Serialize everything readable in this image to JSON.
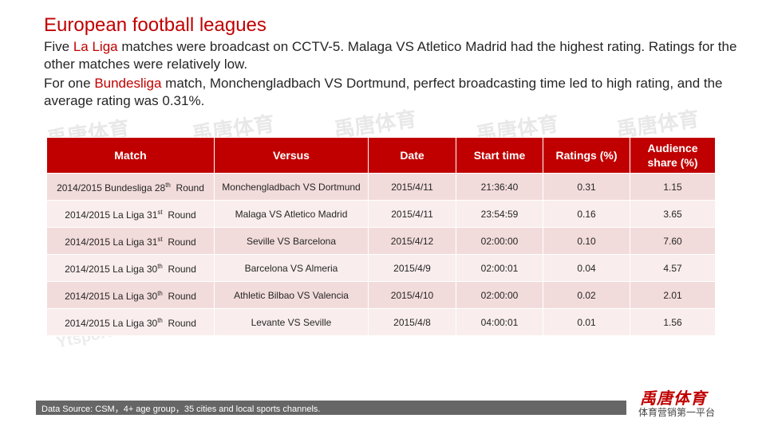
{
  "title": "European football leagues",
  "paragraph1": {
    "before": "Five ",
    "highlight": "La Liga",
    "after": " matches were broadcast on CCTV-5. Malaga VS Atletico Madrid had the highest rating. Ratings for the other matches were relatively low."
  },
  "paragraph2": {
    "before": "For one ",
    "highlight": "Bundesliga",
    "after": " match, Monchengladbach VS Dortmund, perfect broadcasting time led to high rating, and the average rating was 0.31%."
  },
  "watermark_cn": "禹唐体育",
  "watermark_en": "Ytsports.c...",
  "table": {
    "headers": [
      "Match",
      "Versus",
      "Date",
      "Start time",
      "Ratings (%)",
      "Audience share (%)"
    ],
    "rows": [
      {
        "match_prefix": "2014/2015 Bundesliga 28",
        "sup": "th",
        "match_suffix": "Round",
        "versus": "Monchengladbach VS Dortmund",
        "date": "2015/4/11",
        "start": "21:36:40",
        "rating": "0.31",
        "share": "1.15"
      },
      {
        "match_prefix": "2014/2015 La Liga 31",
        "sup": "st",
        "match_suffix": "Round",
        "versus": "Malaga VS Atletico Madrid",
        "date": "2015/4/11",
        "start": "23:54:59",
        "rating": "0.16",
        "share": "3.65"
      },
      {
        "match_prefix": "2014/2015 La Liga 31",
        "sup": "st",
        "match_suffix": "Round",
        "versus": "Seville VS Barcelona",
        "date": "2015/4/12",
        "start": "02:00:00",
        "rating": "0.10",
        "share": "7.60"
      },
      {
        "match_prefix": "2014/2015 La Liga 30",
        "sup": "th",
        "match_suffix": "Round",
        "versus": "Barcelona VS Almeria",
        "date": "2015/4/9",
        "start": "02:00:01",
        "rating": "0.04",
        "share": "4.57"
      },
      {
        "match_prefix": "2014/2015 La Liga 30",
        "sup": "th",
        "match_suffix": "Round",
        "versus": "Athletic Bilbao VS Valencia",
        "date": "2015/4/10",
        "start": "02:00:00",
        "rating": "0.02",
        "share": "2.01"
      },
      {
        "match_prefix": "2014/2015 La Liga 30",
        "sup": "th",
        "match_suffix": "Round",
        "versus": "Levante VS Seville",
        "date": "2015/4/8",
        "start": "04:00:01",
        "rating": "0.01",
        "share": "1.56"
      }
    ]
  },
  "footer": {
    "source": "Data Source: CSM，4+ age group，35 cities and local sports channels.",
    "logo": "禹唐体育",
    "slogan": "体育营销第一平台"
  },
  "colors": {
    "accent": "#c00000",
    "row_odd": "#f2dcdb",
    "row_even": "#f9eded",
    "footer_bar": "#666666"
  }
}
